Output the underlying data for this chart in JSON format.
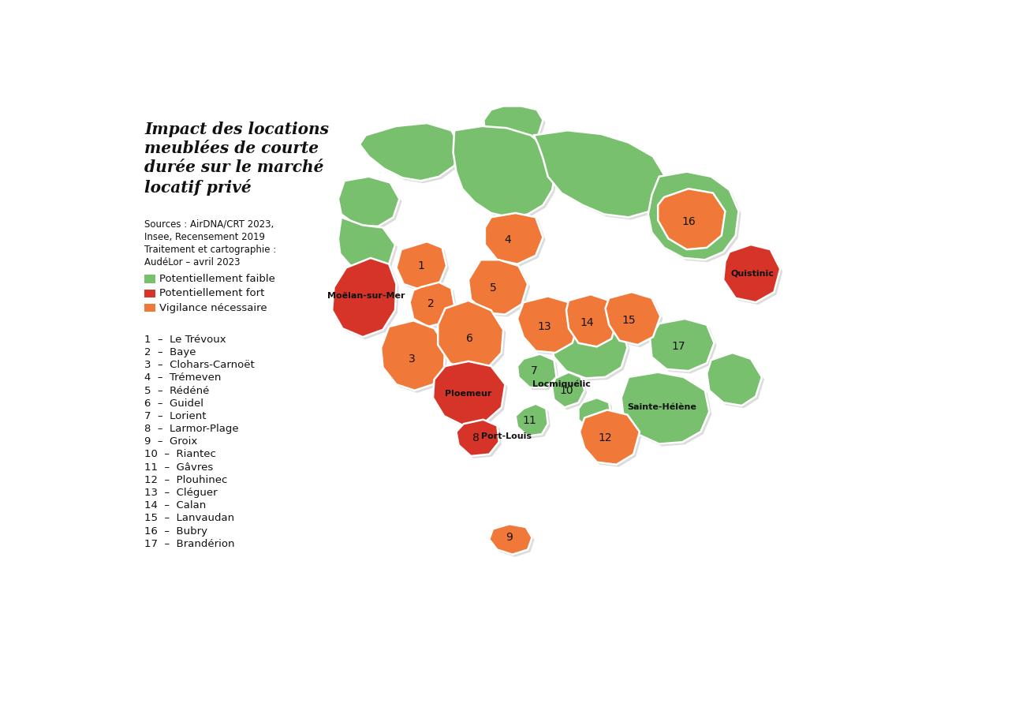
{
  "title": "Impact des locations\nmeublées de courte\ndurée sur le marché\nlocatif privé",
  "sources": "Sources : AirDNA/CRT 2023,\nInsee, Recensement 2019\nTraitement et cartographie :\nAudéLor – avril 2023",
  "legend_items": [
    {
      "key": "faible",
      "label": "Potentiellement faible",
      "color": "#78bf6e"
    },
    {
      "key": "fort",
      "label": "Potentiellement fort",
      "color": "#d63428"
    },
    {
      "key": "vigilance",
      "label": "Vigilance nécessaire",
      "color": "#f07838"
    }
  ],
  "list_items": [
    "1  –  Le Trévoux",
    "2  –  Baye",
    "3  –  Clohars-Carnoët",
    "4  –  Trémeven",
    "5  –  Rédéné",
    "6  –  Guidel",
    "7  –  Lorient",
    "8  –  Larmor-Plage",
    "9  –  Groix",
    "10  –  Riantec",
    "11  –  Gâvres",
    "12  –  Plouhinec",
    "13  –  Cléguer",
    "14  –  Calan",
    "15  –  Lanvaudan",
    "16  –  Bubry",
    "17  –  Brandérion"
  ],
  "colors": {
    "faible": "#78bf6e",
    "fort": "#d63428",
    "vigilance": "#f07838"
  },
  "bg": "#ffffff"
}
